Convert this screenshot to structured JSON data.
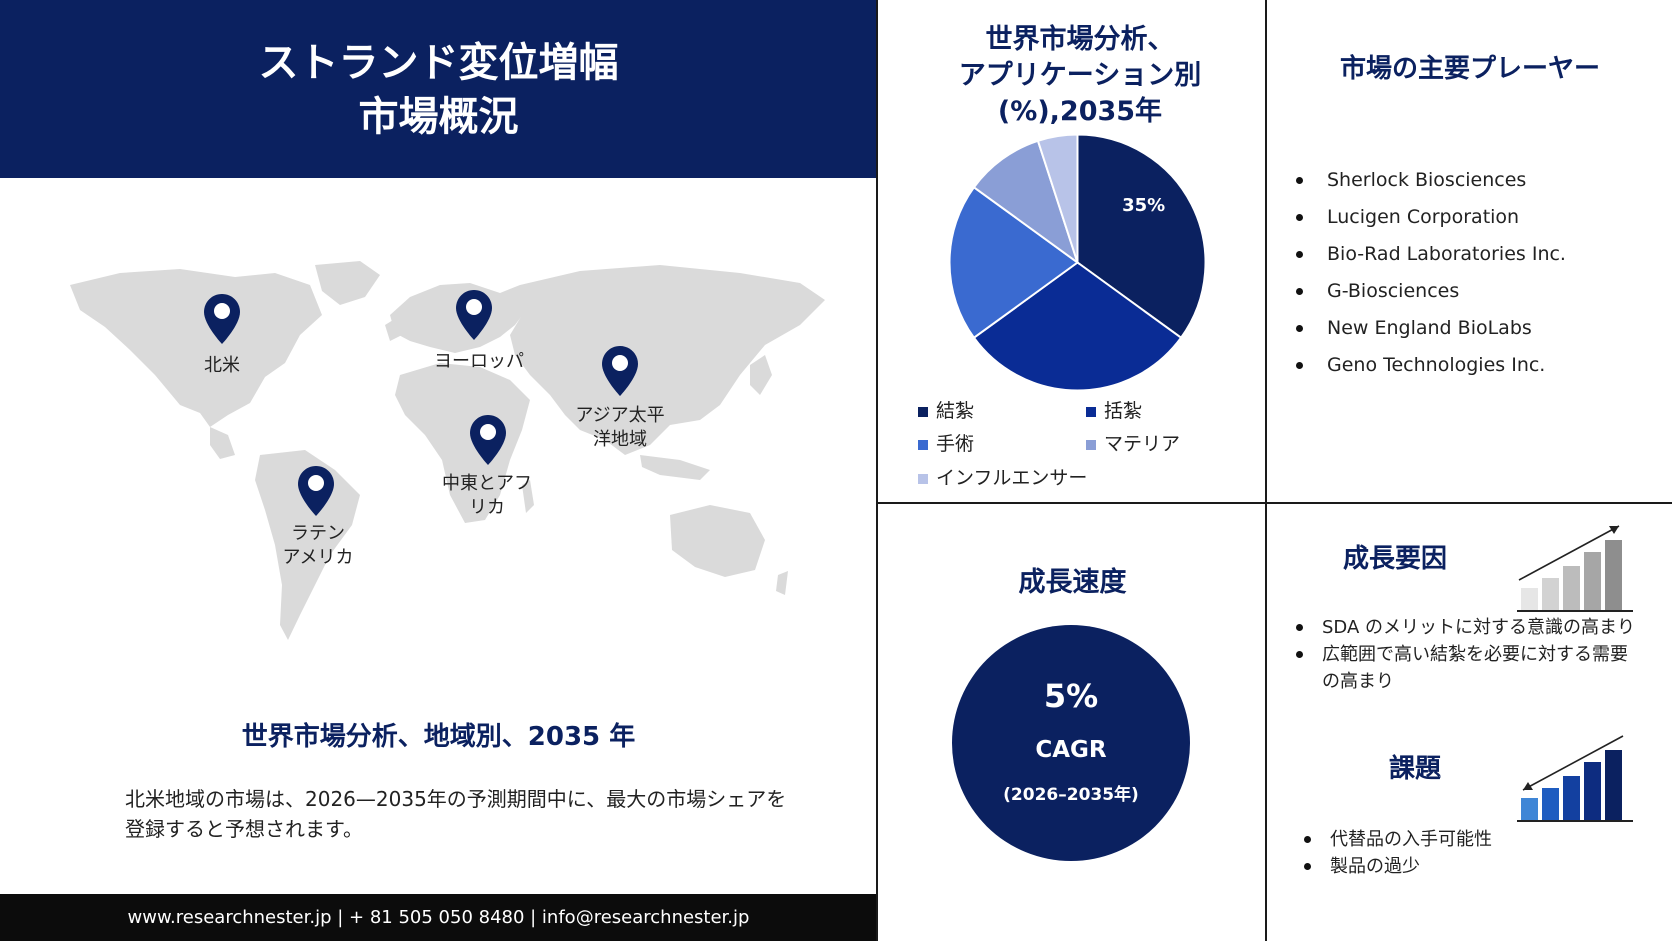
{
  "header": {
    "title_line1": "ストランド変位増幅",
    "title_line2": "市場概況"
  },
  "map": {
    "regions": [
      "北米",
      "ヨーロッパ",
      "アジア太平\n洋地域",
      "中東とアフ\nリカ",
      "ラテン\nアメリカ"
    ]
  },
  "regional": {
    "heading": "世界市場分析、地域別、2035 年",
    "text": "北米地域の市場は、2026—2035年の予測期間中に、最大の市場シェアを登録すると予想されます。"
  },
  "footer": {
    "contact": "www.researchnester.jp | + 81 505 050 8480 | info@researchnester.jp"
  },
  "pie": {
    "title_line1": "世界市場分析、",
    "title_line2": "アプリケーション別",
    "title_line3": "(%),2035年",
    "slice_label": "35%"
  },
  "chart_data": {
    "type": "pie",
    "categories": [
      "結紮",
      "括紮",
      "手術",
      "マテリア",
      "インフルエンサー"
    ],
    "values": [
      35,
      30,
      20,
      10,
      5
    ],
    "colors": [
      "#0b2160",
      "#0a2c95",
      "#3a6ad0",
      "#8a9ed6",
      "#b8c3e8"
    ],
    "data_labels": [
      "35%",
      "",
      "",
      "",
      ""
    ],
    "legend_position": "bottom"
  },
  "players": {
    "heading": "市場の主要プレーヤー",
    "items": [
      "Sherlock Biosciences",
      "Lucigen Corporation",
      "Bio-Rad Laboratories Inc.",
      "G-Biosciences",
      "New England BioLabs",
      "Geno Technologies Inc."
    ]
  },
  "growth_rate": {
    "heading": "成長速度",
    "value": "5%",
    "label": "CAGR",
    "period": "(2026–2035年)"
  },
  "drivers": {
    "heading": "成長要因",
    "items": [
      "SDA のメリットに対する意識の高まり",
      "広範囲で高い結紮を必要に対する需要の高まり"
    ]
  },
  "challenges": {
    "heading": "課題",
    "items": [
      "代替品の入手可能性",
      "製品の過少"
    ]
  },
  "colors": {
    "navy": "#0b2160",
    "map_gray": "#dcdcdc"
  }
}
